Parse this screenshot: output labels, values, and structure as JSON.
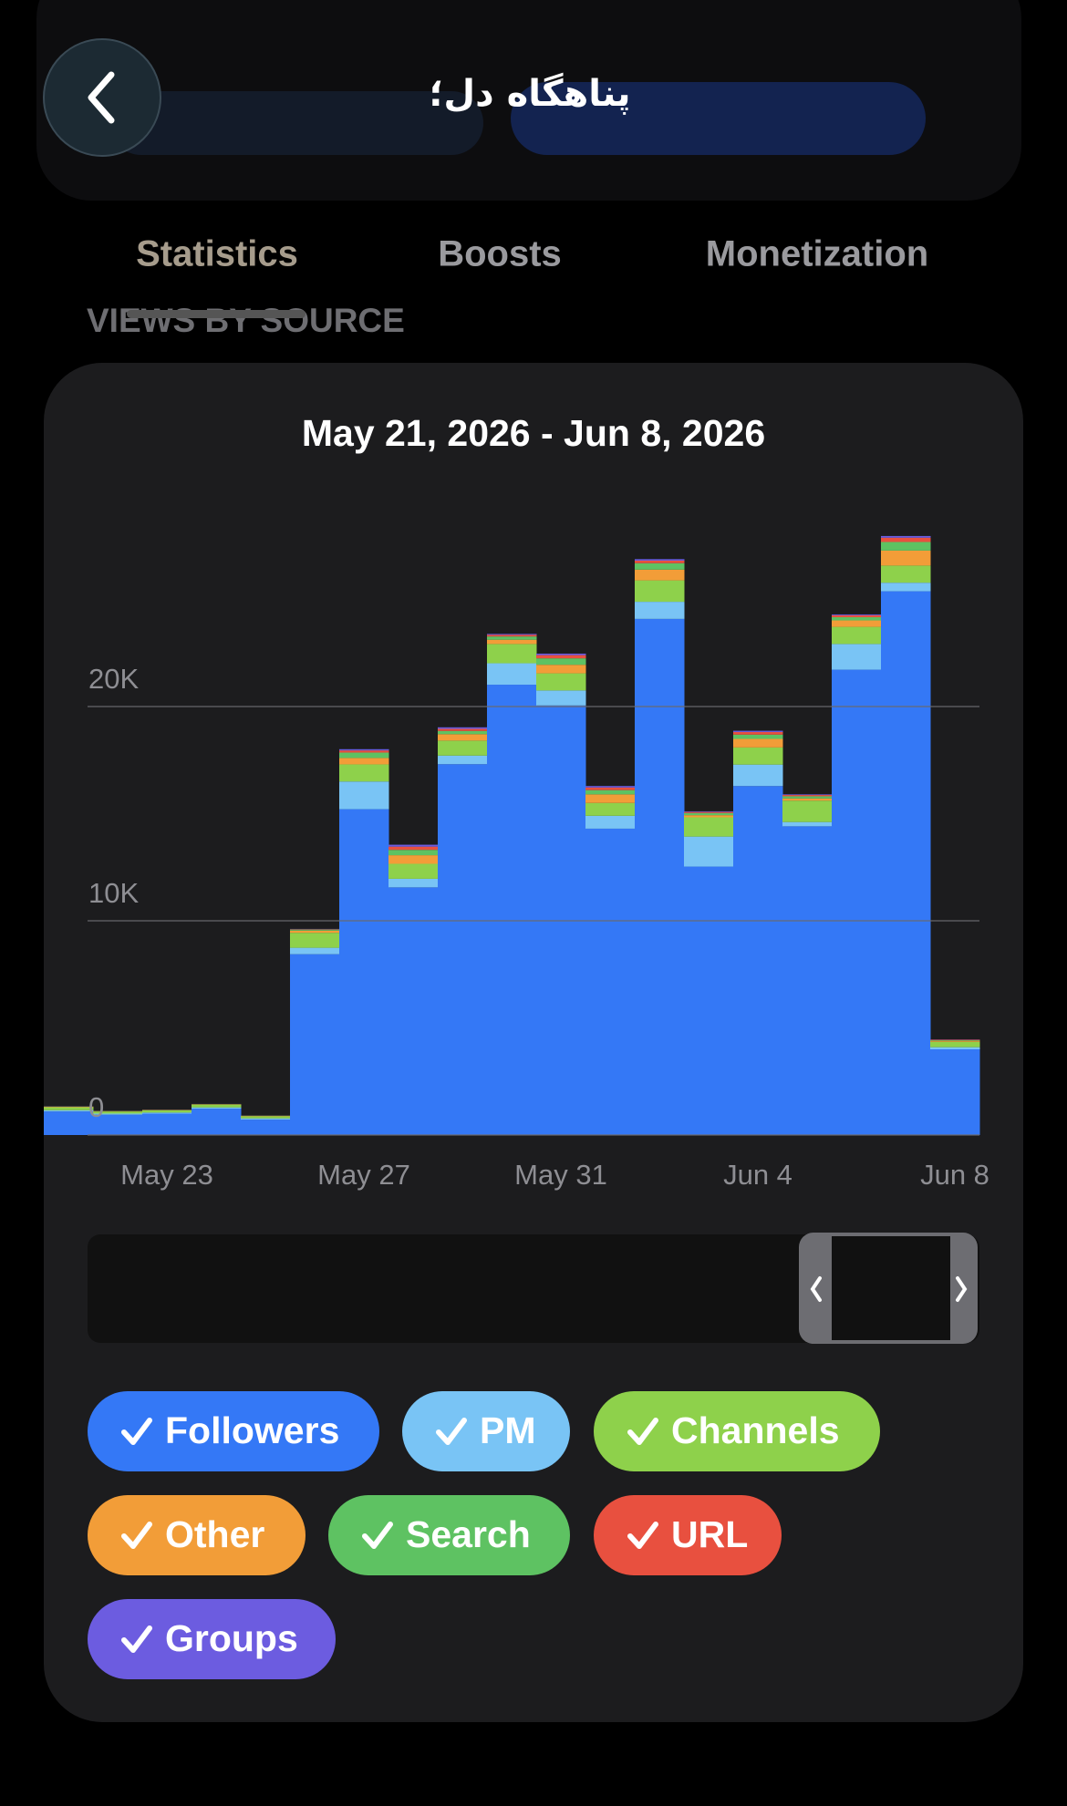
{
  "header": {
    "title": "پناهگاه دل؛"
  },
  "tabs": [
    "Statistics",
    "Boosts",
    "Monetization"
  ],
  "section_title": "VIEWS BY SOURCE",
  "chart_data": {
    "type": "stacked-bar",
    "title": "May 21, 2026 - Jun 8, 2026",
    "categories": [
      null,
      null,
      "May 23",
      null,
      null,
      null,
      "May 27",
      null,
      null,
      null,
      "May 31",
      null,
      null,
      null,
      "Jun 4",
      null,
      null,
      null,
      "Jun 8"
    ],
    "series": [
      {
        "name": "Followers",
        "color": "#3478f6",
        "values": [
          1100,
          950,
          1000,
          1230,
          720,
          8440,
          15210,
          11560,
          17310,
          21020,
          20050,
          14300,
          24090,
          12530,
          16290,
          14410,
          21720,
          25380,
          4000
        ]
      },
      {
        "name": "PM",
        "color": "#79c4f5",
        "values": [
          60,
          50,
          50,
          60,
          60,
          300,
          1290,
          400,
          400,
          1000,
          700,
          600,
          800,
          1400,
          1000,
          200,
          1200,
          400,
          100
        ]
      },
      {
        "name": "Channels",
        "color": "#8ed14b",
        "values": [
          140,
          100,
          100,
          130,
          100,
          700,
          800,
          700,
          700,
          900,
          800,
          600,
          1000,
          900,
          800,
          1000,
          800,
          800,
          250
        ]
      },
      {
        "name": "Other",
        "color": "#f29d38",
        "values": [
          20,
          15,
          15,
          15,
          15,
          100,
          300,
          400,
          300,
          200,
          400,
          400,
          500,
          100,
          400,
          100,
          300,
          700,
          50
        ]
      },
      {
        "name": "Search",
        "color": "#5ec262",
        "values": [
          10,
          8,
          8,
          8,
          8,
          50,
          250,
          250,
          150,
          150,
          300,
          200,
          300,
          100,
          200,
          100,
          150,
          400,
          30
        ]
      },
      {
        "name": "URL",
        "color": "#e8503f",
        "values": [
          5,
          4,
          4,
          4,
          4,
          20,
          100,
          150,
          100,
          80,
          150,
          120,
          120,
          50,
          120,
          60,
          90,
          200,
          20
        ]
      },
      {
        "name": "Groups",
        "color": "#6c5ce0",
        "values": [
          5,
          3,
          3,
          3,
          3,
          10,
          60,
          90,
          70,
          40,
          70,
          70,
          70,
          30,
          60,
          30,
          40,
          80,
          10
        ]
      }
    ],
    "ylim": [
      0,
      30000
    ],
    "yticks": [
      0,
      {
        "value": 10000,
        "label": "10K"
      },
      {
        "value": 20000,
        "label": "20K"
      }
    ],
    "grid": true
  }
}
